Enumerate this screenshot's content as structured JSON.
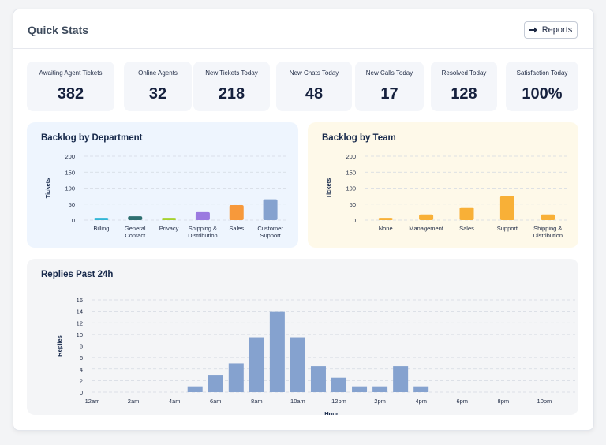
{
  "header": {
    "title": "Quick Stats",
    "reports_label": "Reports"
  },
  "stats": [
    {
      "label": "Awaiting Agent Tickets",
      "value": "382"
    },
    {
      "label": "Online Agents",
      "value": "32"
    },
    {
      "label": "New Tickets Today",
      "value": "218"
    },
    {
      "label": "New Chats Today",
      "value": "48"
    },
    {
      "label": "New Calls Today",
      "value": "17"
    },
    {
      "label": "Resolved Today",
      "value": "128"
    },
    {
      "label": "Satisfaction Today",
      "value": "100%"
    }
  ],
  "charts": {
    "department_title": "Backlog by Department",
    "team_title": "Backlog by Team",
    "replies_title": "Replies Past 24h"
  },
  "chart_data": [
    {
      "type": "bar",
      "title": "Backlog by Department",
      "ylabel": "Tickets",
      "xlabel": "",
      "ylim": [
        0,
        200
      ],
      "yticks": [
        0,
        50,
        100,
        150,
        200
      ],
      "categories": [
        "Billing",
        "General Contact",
        "Privacy",
        "Shipping & Distribution",
        "Sales",
        "Customer Support"
      ],
      "category_lines": [
        [
          "Billing"
        ],
        [
          "General",
          "Contact"
        ],
        [
          "Privacy"
        ],
        [
          "Shipping &",
          "Distribution"
        ],
        [
          "Sales"
        ],
        [
          "Customer",
          "Support"
        ]
      ],
      "values": [
        7,
        12,
        7,
        25,
        47,
        65
      ],
      "colors": [
        "#33b6d6",
        "#2e6f70",
        "#a6d22e",
        "#9b7ae0",
        "#f7993b",
        "#85a2cf"
      ],
      "grid": true
    },
    {
      "type": "bar",
      "title": "Backlog by Team",
      "ylabel": "Tickets",
      "xlabel": "",
      "ylim": [
        0,
        200
      ],
      "yticks": [
        0,
        50,
        100,
        150,
        200
      ],
      "categories": [
        "None",
        "Management",
        "Sales",
        "Support",
        "Shipping & Distribution"
      ],
      "category_lines": [
        [
          "None"
        ],
        [
          "Management"
        ],
        [
          "Sales"
        ],
        [
          "Support"
        ],
        [
          "Shipping &",
          "Distribution"
        ]
      ],
      "values": [
        7,
        18,
        40,
        75,
        18
      ],
      "colors": [
        "#f8b037",
        "#f8b037",
        "#f8b037",
        "#f8b037",
        "#f8b037"
      ],
      "grid": true
    },
    {
      "type": "bar",
      "title": "Replies Past 24h",
      "ylabel": "Replies",
      "xlabel": "Hour",
      "ylim": [
        0,
        16
      ],
      "yticks": [
        0,
        2,
        4,
        6,
        8,
        10,
        12,
        14,
        16
      ],
      "xtick_labels": [
        "12am",
        "2am",
        "4am",
        "6am",
        "8am",
        "10am",
        "12pm",
        "2pm",
        "4pm",
        "6pm",
        "8pm",
        "10pm"
      ],
      "hours": [
        0,
        1,
        2,
        3,
        4,
        5,
        6,
        7,
        8,
        9,
        10,
        11,
        12,
        13,
        14,
        15,
        16,
        17,
        18,
        19,
        20,
        21,
        22,
        23
      ],
      "values": [
        0,
        0,
        0,
        0,
        0,
        1,
        3,
        5,
        9.5,
        14,
        9.5,
        4.5,
        2.5,
        1,
        1,
        4.5,
        1,
        0,
        0,
        0,
        0,
        0,
        0,
        0
      ],
      "color": "#85a2cf",
      "grid": true
    }
  ],
  "colors": {
    "dept_bg": "#eef5fe",
    "team_bg": "#fef9e9",
    "replies_bg": "#f4f5f7",
    "text_dark": "#16213e",
    "grid": "#d8dde5"
  }
}
